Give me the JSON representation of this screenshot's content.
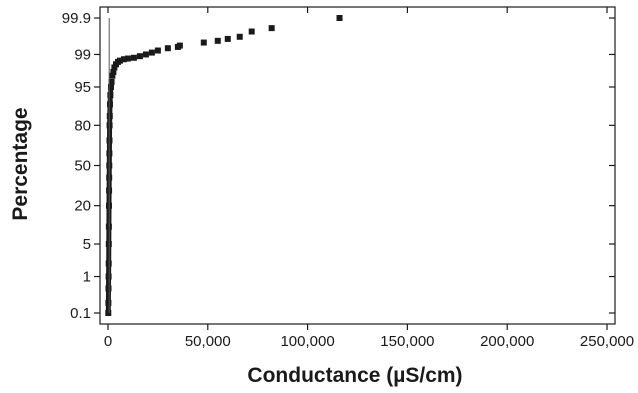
{
  "chart_data": {
    "type": "scatter",
    "title": "",
    "xlabel": "Conductance (µS/cm)",
    "ylabel": "Percentage",
    "x_scale": "linear",
    "y_scale": "normal-probability",
    "xlim": [
      -4000,
      254000
    ],
    "ylim": [
      0.1,
      99.9
    ],
    "x_ticks": [
      0,
      50000,
      100000,
      150000,
      200000,
      250000
    ],
    "x_tick_labels": [
      "0",
      "50,000",
      "100,000",
      "150,000",
      "200,000",
      "250,000"
    ],
    "y_ticks": [
      0.1,
      1,
      5,
      20,
      50,
      80,
      95,
      99,
      99.9
    ],
    "y_tick_labels": [
      "0.1",
      "1",
      "5",
      "20",
      "50",
      "80",
      "95",
      "99",
      "99.9"
    ],
    "grid": false,
    "legend": "none",
    "marker_color": "#1a1a1a",
    "fit_line_color": "#555555",
    "series": [
      {
        "marker": "square",
        "points": [
          [
            150,
            0.1
          ],
          [
            200,
            0.2
          ],
          [
            250,
            0.5
          ],
          [
            300,
            1
          ],
          [
            350,
            2
          ],
          [
            400,
            5
          ],
          [
            450,
            10
          ],
          [
            500,
            20
          ],
          [
            550,
            30
          ],
          [
            600,
            40
          ],
          [
            650,
            50
          ],
          [
            700,
            60
          ],
          [
            750,
            70
          ],
          [
            800,
            80
          ],
          [
            900,
            85
          ],
          [
            1000,
            90
          ],
          [
            1200,
            93
          ],
          [
            1500,
            95
          ],
          [
            1800,
            96
          ],
          [
            2200,
            97
          ],
          [
            2700,
            97.5
          ],
          [
            3200,
            98
          ],
          [
            4000,
            98.3
          ],
          [
            5000,
            98.5
          ],
          [
            6000,
            98.6
          ],
          [
            8000,
            98.7
          ],
          [
            10000,
            98.75
          ],
          [
            13000,
            98.8
          ],
          [
            16000,
            98.9
          ],
          [
            19000,
            99
          ],
          [
            22000,
            99.1
          ],
          [
            25000,
            99.2
          ],
          [
            30000,
            99.3
          ],
          [
            35000,
            99.35
          ],
          [
            36000,
            99.4
          ],
          [
            48000,
            99.5
          ],
          [
            55000,
            99.55
          ],
          [
            60000,
            99.6
          ],
          [
            66000,
            99.65
          ],
          [
            72000,
            99.75
          ],
          [
            82000,
            99.8
          ],
          [
            116000,
            99.9
          ]
        ]
      },
      {
        "type": "line",
        "points": [
          [
            600,
            0.1
          ],
          [
            600,
            99.9
          ]
        ]
      }
    ]
  }
}
